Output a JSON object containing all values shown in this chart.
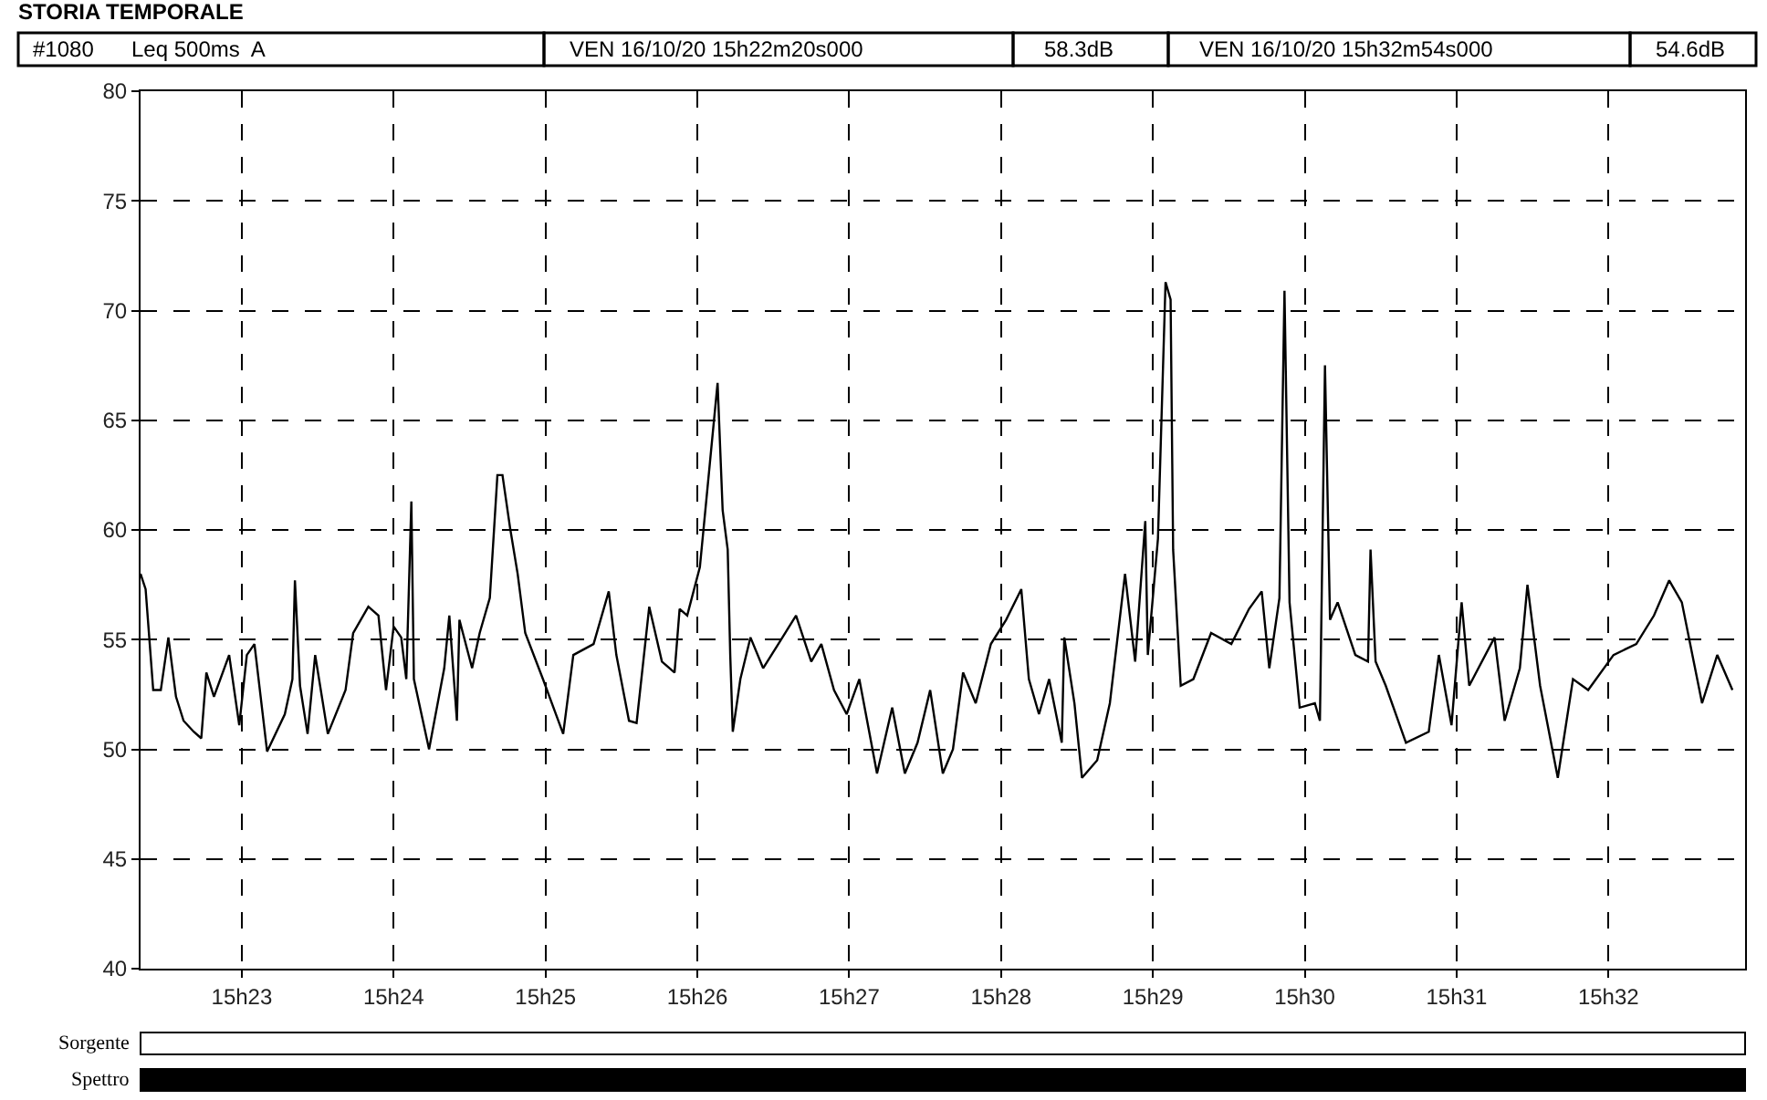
{
  "chart_data": {
    "type": "line",
    "title": "STORIA TEMPORALE",
    "annotations": [
      "#1080",
      "Leq 500ms  A",
      "VEN 16/10/20 15h22m20s000",
      "58.3dB",
      "VEN 16/10/20 15h32m54s000",
      "54.6dB",
      "Sorgente",
      "Spettro"
    ],
    "series": [
      {
        "color": "#000000",
        "x": [
          "--10-16T15:22:20",
          "--10-16T15:22:22",
          "--10-16T15:22:25",
          "--10-16T15:22:28",
          "--10-16T15:22:31",
          "--10-16T15:22:34",
          "--10-16T15:22:37",
          "--10-16T15:22:41",
          "--10-16T15:22:44",
          "--10-16T15:22:46",
          "--10-16T15:22:49",
          "--10-16T15:22:55",
          "--10-16T15:22:59",
          "--10-16T15:23:02",
          "--10-16T15:23:05",
          "--10-16T15:23:10",
          "--10-16T15:23:17",
          "--10-16T15:23:20",
          "--10-16T15:23:21",
          "--10-16T15:23:23",
          "--10-16T15:23:26",
          "--10-16T15:23:29",
          "--10-16T15:23:34",
          "--10-16T15:23:41",
          "--10-16T15:23:44",
          "--10-16T15:23:50",
          "--10-16T15:23:54",
          "--10-16T15:23:57",
          "--10-16T15:24:00",
          "--10-16T15:24:03",
          "--10-16T15:24:05",
          "--10-16T15:24:07",
          "--10-16T15:24:08",
          "--10-16T15:24:14",
          "--10-16T15:24:20",
          "--10-16T15:24:22",
          "--10-16T15:24:25",
          "--10-16T15:24:26",
          "--10-16T15:24:31",
          "--10-16T15:24:34",
          "--10-16T15:24:38",
          "--10-16T15:24:41",
          "--10-16T15:24:43",
          "--10-16T15:24:46",
          "--10-16T15:24:49",
          "--10-16T15:24:52",
          "--10-16T15:24:59",
          "--10-16T15:25:07",
          "--10-16T15:25:11",
          "--10-16T15:25:19",
          "--10-16T15:25:25",
          "--10-16T15:25:28",
          "--10-16T15:25:33",
          "--10-16T15:25:36",
          "--10-16T15:25:41",
          "--10-16T15:25:46",
          "--10-16T15:25:51",
          "--10-16T15:25:53",
          "--10-16T15:25:56",
          "--10-16T15:26:01",
          "--10-16T15:26:05",
          "--10-16T15:26:08",
          "--10-16T15:26:10",
          "--10-16T15:26:12",
          "--10-16T15:26:13",
          "--10-16T15:26:14",
          "--10-16T15:26:17",
          "--10-16T15:26:21",
          "--10-16T15:26:26",
          "--10-16T15:26:32",
          "--10-16T15:26:39",
          "--10-16T15:26:45",
          "--10-16T15:26:49",
          "--10-16T15:26:54",
          "--10-16T15:26:59",
          "--10-16T15:27:04",
          "--10-16T15:27:11",
          "--10-16T15:27:17",
          "--10-16T15:27:22",
          "--10-16T15:27:27",
          "--10-16T15:27:32",
          "--10-16T15:27:37",
          "--10-16T15:27:41",
          "--10-16T15:27:45",
          "--10-16T15:27:50",
          "--10-16T15:27:56",
          "--10-16T15:28:02",
          "--10-16T15:28:08",
          "--10-16T15:28:11",
          "--10-16T15:28:15",
          "--10-16T15:28:19",
          "--10-16T15:28:24",
          "--10-16T15:28:25",
          "--10-16T15:28:29",
          "--10-16T15:28:32",
          "--10-16T15:28:38",
          "--10-16T15:28:43",
          "--10-16T15:28:49",
          "--10-16T15:28:53",
          "--10-16T15:28:57",
          "--10-16T15:28:58",
          "--10-16T15:29:02",
          "--10-16T15:29:05",
          "--10-16T15:29:07",
          "--10-16T15:29:08",
          "--10-16T15:29:11",
          "--10-16T15:29:16",
          "--10-16T15:29:23",
          "--10-16T15:29:31",
          "--10-16T15:29:38",
          "--10-16T15:29:43",
          "--10-16T15:29:46",
          "--10-16T15:29:50",
          "--10-16T15:29:52",
          "--10-16T15:29:54",
          "--10-16T15:29:58",
          "--10-16T15:30:04",
          "--10-16T15:30:06",
          "--10-16T15:30:08",
          "--10-16T15:30:10",
          "--10-16T15:30:13",
          "--10-16T15:30:20",
          "--10-16T15:30:25",
          "--10-16T15:30:26",
          "--10-16T15:30:28",
          "--10-16T15:30:32",
          "--10-16T15:30:40",
          "--10-16T15:30:49",
          "--10-16T15:30:53",
          "--10-16T15:30:58",
          "--10-16T15:31:02",
          "--10-16T15:31:05",
          "--10-16T15:31:15",
          "--10-16T15:31:19",
          "--10-16T15:31:25",
          "--10-16T15:31:28",
          "--10-16T15:31:33",
          "--10-16T15:31:40",
          "--10-16T15:31:46",
          "--10-16T15:31:52",
          "--10-16T15:32:02",
          "--10-16T15:32:11",
          "--10-16T15:32:18",
          "--10-16T15:32:24",
          "--10-16T15:32:29",
          "--10-16T15:32:37",
          "--10-16T15:32:43",
          "--10-16T15:32:49"
        ],
        "values": [
          58.0,
          57.3,
          52.7,
          52.7,
          55.1,
          52.4,
          51.3,
          50.8,
          50.5,
          53.5,
          52.4,
          54.3,
          51.1,
          54.3,
          54.8,
          49.9,
          51.6,
          53.2,
          57.7,
          52.9,
          50.7,
          54.3,
          50.7,
          52.7,
          55.3,
          56.5,
          56.1,
          52.7,
          55.6,
          55.1,
          53.2,
          61.3,
          53.2,
          50.0,
          53.7,
          56.1,
          51.3,
          55.9,
          53.7,
          55.3,
          56.9,
          62.5,
          62.5,
          60.1,
          58.0,
          55.3,
          53.2,
          50.7,
          54.3,
          54.8,
          57.2,
          54.3,
          51.3,
          51.2,
          56.5,
          54.0,
          53.5,
          56.4,
          56.1,
          58.3,
          63.1,
          66.7,
          60.9,
          59.1,
          54.3,
          50.8,
          53.2,
          55.1,
          53.7,
          54.8,
          56.1,
          54.0,
          54.8,
          52.7,
          51.6,
          53.2,
          48.9,
          51.9,
          48.9,
          50.3,
          52.7,
          48.9,
          50.0,
          53.5,
          52.1,
          54.8,
          55.9,
          57.3,
          53.2,
          51.6,
          53.2,
          50.3,
          55.1,
          52.1,
          48.7,
          49.5,
          52.1,
          58.0,
          54.0,
          60.4,
          54.3,
          59.6,
          71.3,
          70.5,
          59.1,
          52.9,
          53.2,
          55.3,
          54.8,
          56.4,
          57.2,
          53.7,
          56.9,
          70.9,
          56.7,
          51.9,
          52.1,
          51.3,
          67.5,
          55.9,
          56.7,
          54.3,
          54.0,
          59.1,
          54.0,
          52.9,
          50.3,
          50.8,
          54.3,
          51.1,
          56.7,
          52.9,
          55.1,
          51.3,
          53.7,
          57.5,
          52.9,
          48.7,
          53.2,
          52.7,
          54.3,
          54.8,
          56.1,
          57.7,
          56.7,
          52.1,
          54.3,
          52.7
        ]
      }
    ],
    "xlim": [
      "--10-16T15:22:20",
      "--10-16T15:32:54"
    ],
    "xticks": [
      {
        "value": "--10-16T15:23",
        "label": "15h23"
      },
      {
        "value": "--10-16T15:24",
        "label": "15h24"
      },
      {
        "value": "--10-16T15:25",
        "label": "15h25"
      },
      {
        "value": "--10-16T15:26",
        "label": "15h26"
      },
      {
        "value": "--10-16T15:27",
        "label": "15h27"
      },
      {
        "value": "--10-16T15:28",
        "label": "15h28"
      },
      {
        "value": "--10-16T15:29",
        "label": "15h29"
      },
      {
        "value": "--10-16T15:30",
        "label": "15h30"
      },
      {
        "value": "--10-16T15:31",
        "label": "15h31"
      },
      {
        "value": "--10-16T15:32",
        "label": "15h32"
      }
    ],
    "ylim": [
      40,
      80
    ],
    "yticks": [
      40,
      45,
      50,
      55,
      60,
      65,
      70,
      75,
      80
    ],
    "grid": true,
    "marker": "none",
    "line_style": "solid"
  }
}
